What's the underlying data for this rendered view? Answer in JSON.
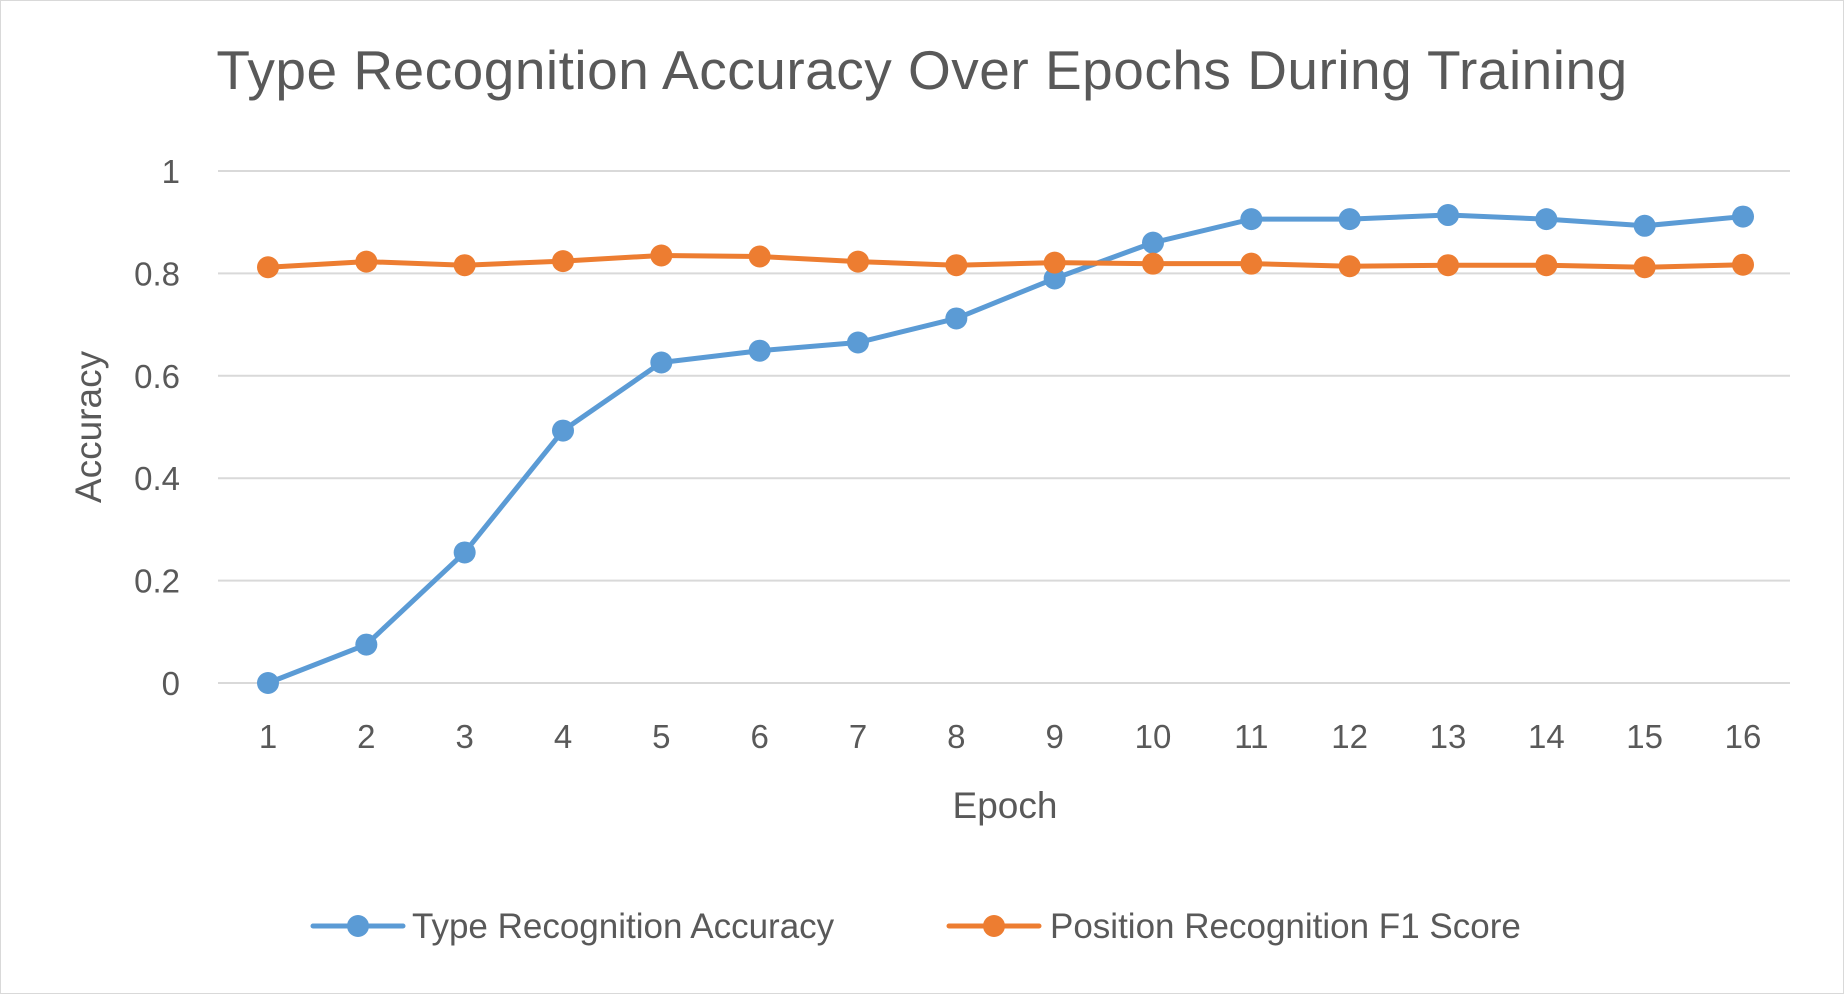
{
  "chart_data": {
    "type": "line",
    "title": "Type Recognition Accuracy Over Epochs During Training",
    "xlabel": "Epoch",
    "ylabel": "Accuracy",
    "categories": [
      "1",
      "2",
      "3",
      "4",
      "5",
      "6",
      "7",
      "8",
      "9",
      "10",
      "11",
      "12",
      "13",
      "14",
      "15",
      "16"
    ],
    "ylim": [
      0,
      1
    ],
    "yticks": [
      "0",
      "0.2",
      "0.4",
      "0.6",
      "0.8",
      "1"
    ],
    "grid": true,
    "legend_position": "bottom",
    "series": [
      {
        "name": "Type Recognition Accuracy",
        "color": "#5b9bd5",
        "values": [
          0.0,
          0.075,
          0.255,
          0.493,
          0.626,
          0.649,
          0.665,
          0.712,
          0.79,
          0.86,
          0.906,
          0.906,
          0.914,
          0.906,
          0.893,
          0.911
        ]
      },
      {
        "name": "Position Recognition F1 Score",
        "color": "#ed7d31",
        "values": [
          0.812,
          0.823,
          0.816,
          0.824,
          0.835,
          0.833,
          0.823,
          0.816,
          0.821,
          0.819,
          0.819,
          0.814,
          0.816,
          0.816,
          0.812,
          0.817
        ]
      }
    ]
  }
}
